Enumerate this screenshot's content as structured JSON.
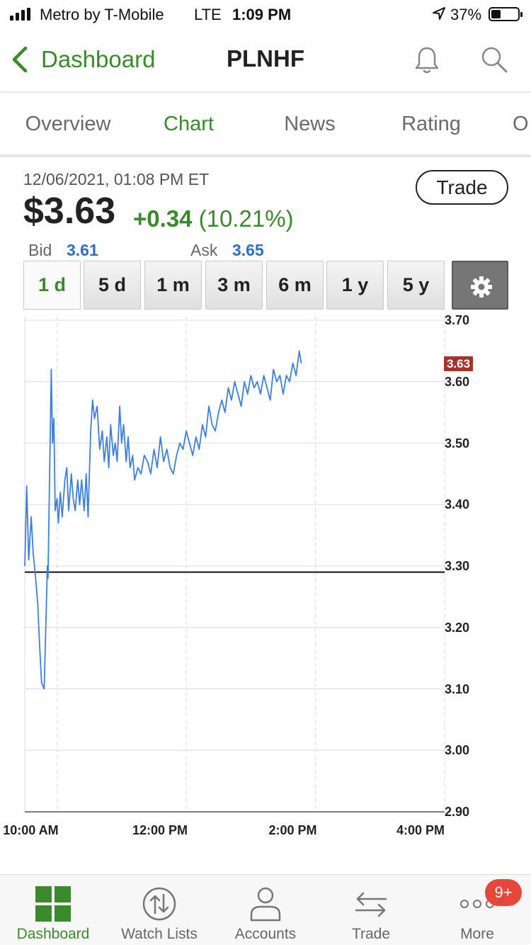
{
  "status_bar": {
    "carrier": "Metro by T-Mobile",
    "network": "LTE",
    "time": "1:09 PM",
    "battery_percent": "37%",
    "battery_level": 0.37
  },
  "nav": {
    "back_label": "Dashboard",
    "title": "PLNHF"
  },
  "tabs": [
    {
      "label": "Overview"
    },
    {
      "label": "Chart",
      "active": true
    },
    {
      "label": "News"
    },
    {
      "label": "Rating"
    },
    {
      "label": "O"
    }
  ],
  "quote": {
    "timestamp": "12/06/2021, 01:08 PM ET",
    "price": "$3.63",
    "change": "+0.34",
    "change_pct": "(10.21%)",
    "bid_label": "Bid",
    "bid": "3.61",
    "ask_label": "Ask",
    "ask": "3.65",
    "trade_button": "Trade"
  },
  "ranges": [
    {
      "label": "1 d",
      "active": true
    },
    {
      "label": "5 d"
    },
    {
      "label": "1 m"
    },
    {
      "label": "3 m"
    },
    {
      "label": "6 m"
    },
    {
      "label": "1 y"
    },
    {
      "label": "5 y"
    }
  ],
  "chart_data": {
    "type": "line",
    "y_ticks": [
      "3.70",
      "3.60",
      "3.50",
      "3.40",
      "3.30",
      "3.20",
      "3.10",
      "3.00",
      "2.90"
    ],
    "ylim": [
      2.9,
      3.7
    ],
    "x_ticks": [
      "10:00 AM",
      "12:00 PM",
      "2:00 PM",
      "4:00 PM"
    ],
    "xlim_hours": [
      9.5,
      16.0
    ],
    "previous_close": 3.29,
    "last_price": 3.63,
    "last_price_label": "3.63",
    "series_color": "#3f7fdc",
    "series": [
      {
        "x": [
          9.5,
          9.53,
          9.56,
          9.6,
          9.63,
          9.66,
          9.7,
          9.73,
          9.76,
          9.8,
          9.83,
          9.85,
          9.86,
          9.88,
          9.9,
          9.91,
          9.93,
          9.95,
          9.97,
          10.0,
          10.02,
          10.05,
          10.08,
          10.12,
          10.15,
          10.18,
          10.22,
          10.25,
          10.28,
          10.32,
          10.35,
          10.38,
          10.42,
          10.45,
          10.48,
          10.52,
          10.55,
          10.58,
          10.62,
          10.66,
          10.7,
          10.73,
          10.77,
          10.8,
          10.83,
          10.87,
          10.9,
          10.93,
          10.97,
          11.0,
          11.03,
          11.07,
          11.1,
          11.13,
          11.17,
          11.2,
          11.25,
          11.3,
          11.35,
          11.4,
          11.45,
          11.5,
          11.55,
          11.6,
          11.65,
          11.7,
          11.75,
          11.8,
          11.85,
          11.9,
          11.95,
          12.0,
          12.05,
          12.1,
          12.15,
          12.2,
          12.25,
          12.3,
          12.35,
          12.4,
          12.45,
          12.5,
          12.55,
          12.6,
          12.65,
          12.7,
          12.75,
          12.8,
          12.85,
          12.9,
          12.95,
          13.0,
          13.05,
          13.1,
          13.15,
          13.2,
          13.25,
          13.3,
          13.35,
          13.4,
          13.45,
          13.5,
          13.55,
          13.6,
          13.65,
          13.7,
          13.75,
          13.78
        ],
        "values": [
          3.3,
          3.43,
          3.31,
          3.38,
          3.32,
          3.29,
          3.24,
          3.17,
          3.11,
          3.1,
          3.22,
          3.3,
          3.28,
          3.42,
          3.55,
          3.62,
          3.5,
          3.54,
          3.39,
          3.41,
          3.37,
          3.42,
          3.38,
          3.44,
          3.46,
          3.39,
          3.45,
          3.41,
          3.39,
          3.44,
          3.4,
          3.44,
          3.39,
          3.45,
          3.38,
          3.52,
          3.57,
          3.54,
          3.56,
          3.49,
          3.52,
          3.47,
          3.51,
          3.46,
          3.53,
          3.48,
          3.5,
          3.47,
          3.56,
          3.5,
          3.53,
          3.47,
          3.51,
          3.46,
          3.48,
          3.44,
          3.46,
          3.45,
          3.48,
          3.47,
          3.45,
          3.49,
          3.46,
          3.51,
          3.47,
          3.49,
          3.46,
          3.45,
          3.48,
          3.5,
          3.49,
          3.52,
          3.5,
          3.48,
          3.51,
          3.49,
          3.53,
          3.51,
          3.56,
          3.53,
          3.52,
          3.55,
          3.57,
          3.55,
          3.59,
          3.57,
          3.6,
          3.58,
          3.56,
          3.6,
          3.58,
          3.61,
          3.59,
          3.6,
          3.58,
          3.61,
          3.59,
          3.57,
          3.62,
          3.6,
          3.61,
          3.58,
          3.61,
          3.6,
          3.63,
          3.61,
          3.65,
          3.63
        ]
      }
    ]
  },
  "bottom_tabs": [
    {
      "label": "Dashboard",
      "icon": "dashboard-grid-icon",
      "active": true
    },
    {
      "label": "Watch Lists",
      "icon": "watch-lists-icon"
    },
    {
      "label": "Accounts",
      "icon": "person-icon"
    },
    {
      "label": "Trade",
      "icon": "trade-arrows-icon"
    },
    {
      "label": "More",
      "icon": "more-dots-icon"
    }
  ],
  "more_badge": "9+",
  "colors": {
    "brand_green": "#3a8a2c",
    "bid_ask_blue": "#2e6fc4",
    "last_price_badge": "#a8322c",
    "notification_badge": "#e8463a"
  }
}
